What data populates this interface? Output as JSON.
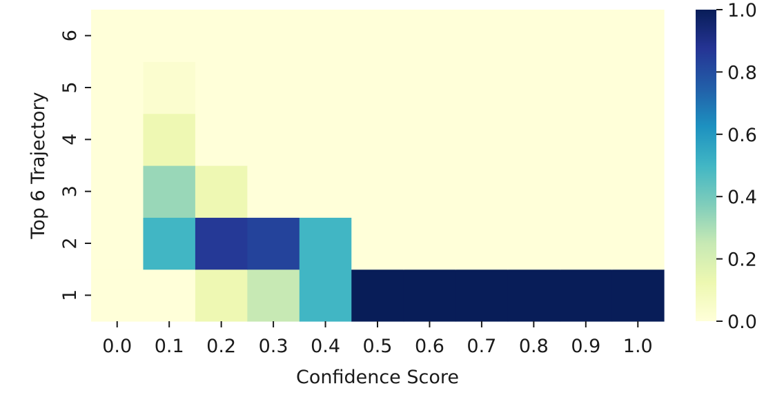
{
  "chart_data": {
    "type": "heatmap",
    "title": "",
    "xlabel": "Confidence Score",
    "ylabel": "Top 6 Trajectory",
    "x_categories": [
      "0.0",
      "0.1",
      "0.2",
      "0.3",
      "0.4",
      "0.5",
      "0.6",
      "0.7",
      "0.8",
      "0.9",
      "1.0"
    ],
    "y_categories": [
      "1",
      "2",
      "3",
      "4",
      "5",
      "6"
    ],
    "values": [
      [
        0.0,
        0.0,
        0.12,
        0.25,
        0.5,
        1.0,
        1.0,
        1.0,
        1.0,
        1.0,
        1.0
      ],
      [
        0.0,
        0.5,
        0.86,
        0.83,
        0.5,
        0.0,
        0.0,
        0.0,
        0.0,
        0.0,
        0.0
      ],
      [
        0.0,
        0.33,
        0.12,
        0.0,
        0.0,
        0.0,
        0.0,
        0.0,
        0.0,
        0.0,
        0.0
      ],
      [
        0.0,
        0.12,
        0.0,
        0.0,
        0.0,
        0.0,
        0.0,
        0.0,
        0.0,
        0.0,
        0.0
      ],
      [
        0.0,
        0.03,
        0.0,
        0.0,
        0.0,
        0.0,
        0.0,
        0.0,
        0.0,
        0.0,
        0.0
      ],
      [
        0.0,
        0.0,
        0.0,
        0.0,
        0.0,
        0.0,
        0.0,
        0.0,
        0.0,
        0.0,
        0.0
      ]
    ],
    "colorbar": {
      "range": [
        0.0,
        1.0
      ],
      "ticks": [
        "0.0",
        "0.2",
        "0.4",
        "0.6",
        "0.8",
        "1.0"
      ],
      "colormap": "YlGnBu",
      "stops": [
        "#ffffd9",
        "#edf8b1",
        "#c7e9b4",
        "#7fcdbb",
        "#41b6c4",
        "#1d91c0",
        "#225ea8",
        "#253494",
        "#081d58"
      ]
    },
    "grid": false
  }
}
